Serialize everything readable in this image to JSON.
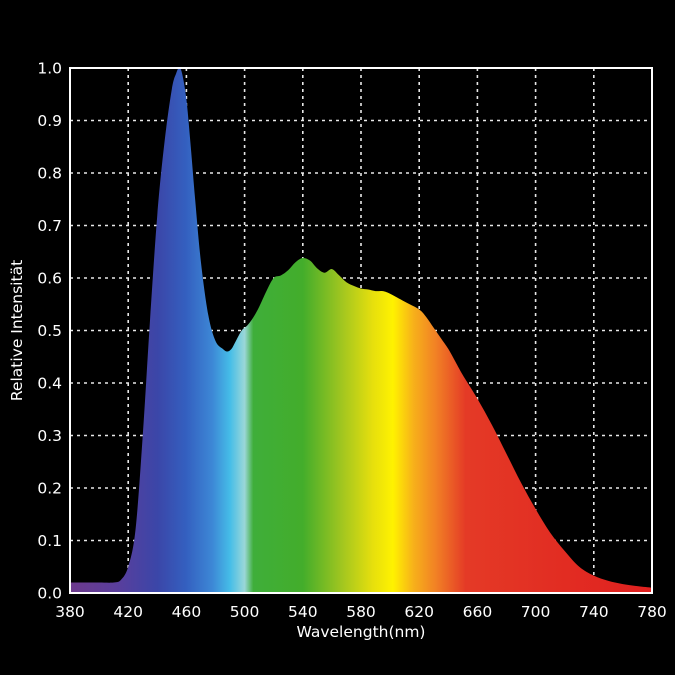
{
  "chart_data": {
    "type": "area",
    "title": "",
    "xlabel": "Wavelength(nm)",
    "ylabel": "Relative Intensität",
    "xlim": [
      380,
      780
    ],
    "ylim": [
      0,
      1.0
    ],
    "x_ticks": [
      380,
      420,
      460,
      500,
      540,
      580,
      620,
      660,
      700,
      740,
      780
    ],
    "y_ticks": [
      0.0,
      0.1,
      0.2,
      0.3,
      0.4,
      0.5,
      0.6,
      0.7,
      0.8,
      0.9,
      1.0
    ],
    "y_tick_labels": [
      "0.0",
      "0.1",
      "0.2",
      "0.3",
      "0.4",
      "0.5",
      "0.6",
      "0.7",
      "0.8",
      "0.9",
      "1.0"
    ],
    "grid": true,
    "fill": "visible-spectrum gradient",
    "background_color": "#000000",
    "axis_color": "#ffffff",
    "series": [
      {
        "x": [
          380,
          390,
          400,
          410,
          415,
          420,
          425,
          430,
          435,
          440,
          445,
          450,
          453,
          455,
          457,
          460,
          463,
          466,
          470,
          475,
          480,
          485,
          488,
          491,
          494,
          498,
          502,
          506,
          510,
          515,
          520,
          525,
          530,
          535,
          540,
          545,
          550,
          555,
          560,
          565,
          570,
          575,
          580,
          585,
          590,
          595,
          600,
          610,
          620,
          625,
          630,
          635,
          640,
          645,
          650,
          660,
          670,
          680,
          690,
          700,
          710,
          720,
          730,
          740,
          750,
          760,
          770,
          780
        ],
        "y": [
          0.02,
          0.02,
          0.02,
          0.02,
          0.025,
          0.05,
          0.12,
          0.3,
          0.52,
          0.72,
          0.86,
          0.96,
          0.99,
          1.0,
          0.99,
          0.94,
          0.85,
          0.75,
          0.63,
          0.53,
          0.48,
          0.465,
          0.46,
          0.465,
          0.48,
          0.5,
          0.51,
          0.525,
          0.545,
          0.575,
          0.6,
          0.605,
          0.615,
          0.63,
          0.638,
          0.633,
          0.618,
          0.61,
          0.617,
          0.605,
          0.592,
          0.585,
          0.58,
          0.578,
          0.575,
          0.575,
          0.57,
          0.555,
          0.54,
          0.525,
          0.505,
          0.485,
          0.465,
          0.44,
          0.415,
          0.37,
          0.32,
          0.265,
          0.21,
          0.16,
          0.115,
          0.08,
          0.05,
          0.033,
          0.023,
          0.017,
          0.013,
          0.01
        ]
      }
    ]
  }
}
